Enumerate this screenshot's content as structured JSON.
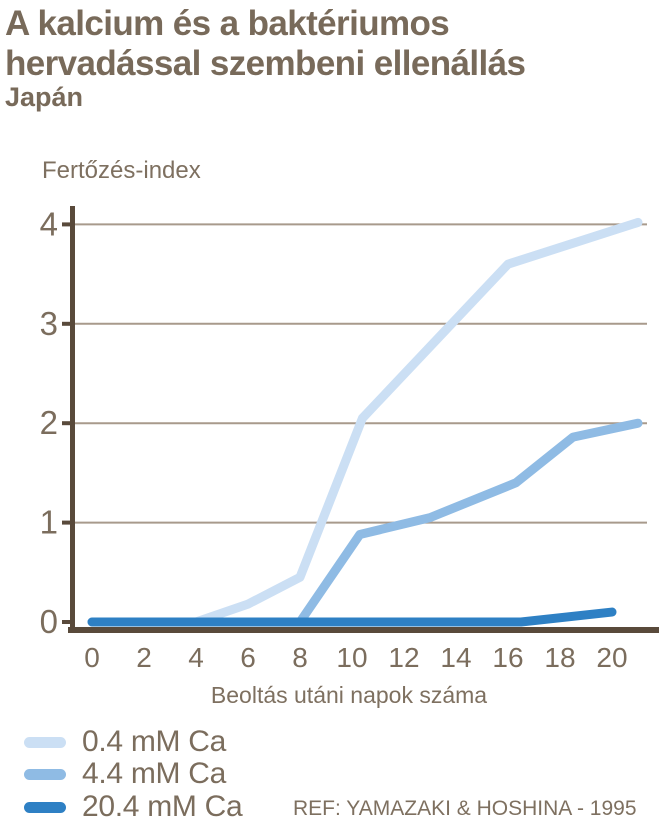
{
  "header": {
    "title_line1": "A kalcium és a baktériumos",
    "title_line2": "hervadással szembeni ellenállás",
    "subtitle": "Japán"
  },
  "chart_data": {
    "type": "line",
    "title": "A kalcium és a baktériumos hervadással szembeni ellenállás",
    "subtitle": "Japán",
    "ylabel": "Fertőzés-index",
    "xlabel": "Beoltás utáni napok száma",
    "xlim": [
      0,
      21.5
    ],
    "ylim": [
      0,
      4.3
    ],
    "x_ticks": [
      0,
      2,
      4,
      6,
      8,
      10,
      12,
      14,
      16,
      18,
      20
    ],
    "y_ticks": [
      0,
      1,
      2,
      3,
      4
    ],
    "grid": "horizontal",
    "legend_position": "bottom-left",
    "series": [
      {
        "name": "0.4 mM Ca",
        "color": "#cbdff4",
        "points": [
          [
            0,
            0
          ],
          [
            4,
            0
          ],
          [
            6,
            0.18
          ],
          [
            8,
            0.45
          ],
          [
            10.4,
            2.05
          ],
          [
            16,
            3.6
          ],
          [
            21,
            4.02
          ]
        ]
      },
      {
        "name": "4.4 mM Ca",
        "color": "#8fbbe4",
        "points": [
          [
            0,
            0
          ],
          [
            8,
            0
          ],
          [
            10.3,
            0.88
          ],
          [
            13,
            1.05
          ],
          [
            16.3,
            1.4
          ],
          [
            18.5,
            1.86
          ],
          [
            21,
            2.0
          ]
        ]
      },
      {
        "name": "20.4 mM Ca",
        "color": "#2e80c4",
        "points": [
          [
            0,
            0
          ],
          [
            16.5,
            0
          ],
          [
            20,
            0.1
          ]
        ]
      }
    ],
    "reference": "REF: YAMAZAKI & HOSHINA - 1995"
  },
  "colors": {
    "text": "#7b6d5d",
    "grid": "#a89a8c",
    "axis": "#594a3b"
  }
}
